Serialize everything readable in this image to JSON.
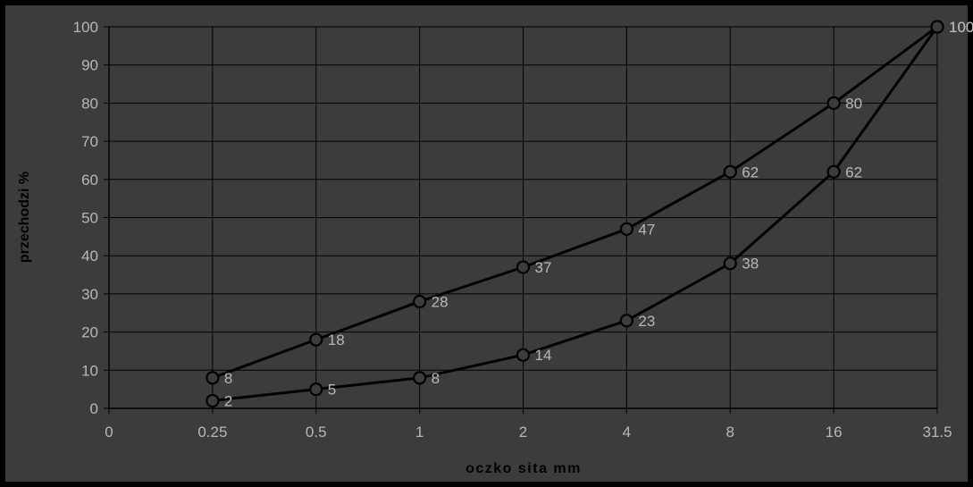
{
  "chart_data": {
    "type": "line",
    "title": "",
    "xlabel": "oczko sita mm",
    "ylabel": "przechodzi %",
    "categories": [
      "0",
      "0.25",
      "0.5",
      "1",
      "2",
      "4",
      "8",
      "16",
      "31.5"
    ],
    "ylim": [
      0,
      100
    ],
    "yticks": [
      0,
      10,
      20,
      30,
      40,
      50,
      60,
      70,
      80,
      90,
      100
    ],
    "grid": true,
    "legend": "none",
    "series": [
      {
        "values": [
          null,
          8,
          18,
          28,
          37,
          47,
          62,
          80,
          100
        ]
      },
      {
        "values": [
          null,
          2,
          5,
          8,
          14,
          23,
          38,
          62,
          100
        ]
      }
    ],
    "colors": {
      "background": "#000000",
      "plot_area": "#3c3c3c",
      "gridline": "#000000",
      "line": "#000000",
      "marker_fill": "#3c3c3c",
      "text": "#b8b8b8"
    }
  }
}
